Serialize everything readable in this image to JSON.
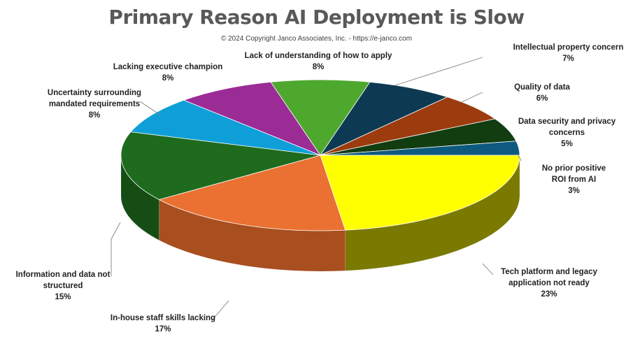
{
  "title": "Primary Reason AI Deployment is Slow",
  "subtitle": "© 2024 Copyright Janco Associates, Inc. - https://e-janco.com",
  "chart_data": {
    "type": "pie",
    "title": "Primary Reason AI Deployment is Slow",
    "subtitle": "© 2024 Copyright Janco Associates, Inc. - https://e-janco.com",
    "style": "3d",
    "start_angle_deg": 0,
    "direction": "clockwise",
    "slices": [
      {
        "label": "Tech platform and legacy\napplication  not ready",
        "value": 23,
        "value_text": "23%",
        "color": "#ffff00",
        "side_color": "#7a7a00"
      },
      {
        "label": "In-house staff skills lacking",
        "value": 17,
        "value_text": "17%",
        "color": "#ea7131",
        "side_color": "#a84e1f"
      },
      {
        "label": "Information and data  not\nstructured",
        "value": 15,
        "value_text": "15%",
        "color": "#1e6b1e",
        "side_color": "#154d15"
      },
      {
        "label": "Uncertainty  surrounding\nmandated  requirements",
        "value": 8,
        "value_text": "8%",
        "color": "#0f9fd8",
        "side_color": "#0b729b"
      },
      {
        "label": "Lacking  executive champion",
        "value": 8,
        "value_text": "8%",
        "color": "#9b2b95",
        "side_color": "#6e1e6a"
      },
      {
        "label": "Lack of understanding of how to apply",
        "value": 8,
        "value_text": "8%",
        "color": "#4fa82e",
        "side_color": "#387820"
      },
      {
        "label": "Intellectual property concern",
        "value": 7,
        "value_text": "7%",
        "color": "#0d3a52",
        "side_color": "#08293a"
      },
      {
        "label": "Quality of data",
        "value": 6,
        "value_text": "6%",
        "color": "#9c3c0e",
        "side_color": "#6e2a0a"
      },
      {
        "label": "Data security and privacy\nconcerns",
        "value": 5,
        "value_text": "5%",
        "color": "#113d11",
        "side_color": "#0b2a0b"
      },
      {
        "label": "No prior positive\nROI from AI",
        "value": 3,
        "value_text": "3%",
        "color": "#0e5a7e",
        "side_color": "#0a4059"
      }
    ]
  }
}
